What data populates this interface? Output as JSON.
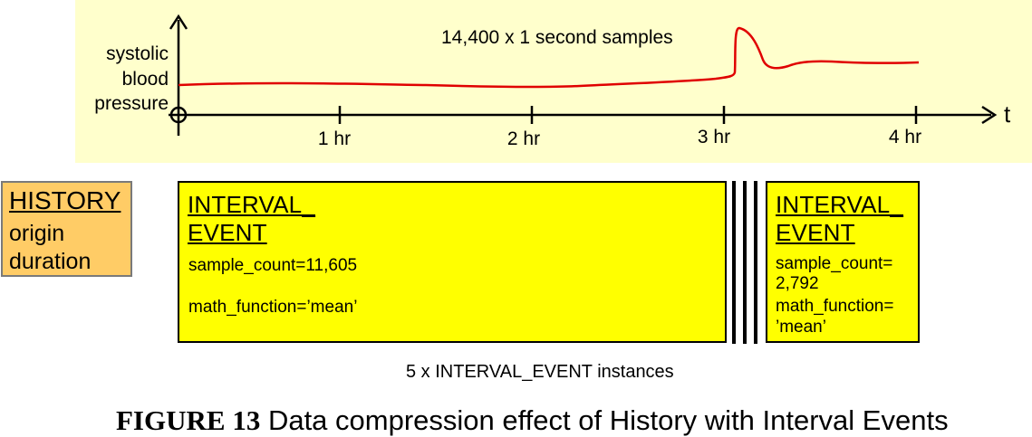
{
  "plot": {
    "y_label_lines": [
      "systolic",
      "blood",
      "pressure"
    ],
    "x_axis_label": "t",
    "x_ticks": [
      "1 hr",
      "2 hr",
      "3 hr",
      "4 hr"
    ],
    "annotation": "14,400 x 1 second samples",
    "colors": {
      "background": "#ffffcc",
      "signal": "#e00000"
    }
  },
  "history_box": {
    "title": "HISTORY",
    "attributes": [
      "origin",
      "duration"
    ],
    "color": "#ffcc66"
  },
  "interval_events": [
    {
      "title_line1": "INTERVAL_",
      "title_line2": "EVENT",
      "fields": [
        "sample_count=11,605",
        "math_function=’mean’"
      ]
    },
    {
      "title_line1": "INTERVAL_",
      "title_line2": "EVENT",
      "fields": [
        "sample_count=",
        "2,792",
        "math_function=",
        "’mean’"
      ]
    }
  ],
  "instances_caption": "5 x INTERVAL_EVENT instances",
  "figure_caption": {
    "label": "FIGURE  13",
    "text": " Data compression effect of History with Interval Events"
  }
}
